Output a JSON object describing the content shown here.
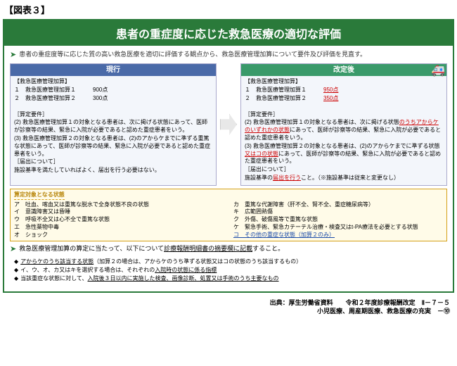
{
  "figure_label": "【図表３】",
  "title": "患者の重症度に応じた救急医療の適切な評価",
  "intro": "患者の重症度等に応じた質の高い救急医療を適切に評価する観点から、救急医療管理加算について要件及び評価を見直す。",
  "current": {
    "header": "現行",
    "section1_label": "【救急医療管理加算】",
    "item1": "１　救急医療管理加算１　　　900点",
    "item2": "２　救急医療管理加算２　　　300点",
    "req_label": "［算定要件］",
    "req2": "(2) 救急医療管理加算１の対象となる患者は、次に掲げる状態にあって、医師が診察等の結果、緊急に入院が必要であると認めた重症患者をいう。",
    "req3": "(3) 救急医療管理加算２の対象となる患者は、(2)のアからケまでに準ずる重篤な状態にあって、医師が診察等の結果、緊急に入院が必要であると認めた重症患者をいう。",
    "notify_label": "［届出について］",
    "notify": "施設基準を満たしていればよく、届出を行う必要はない。"
  },
  "revised": {
    "header": "改定後",
    "section1_label": "【救急医療管理加算】",
    "item1_pre": "１　救急医療管理加算１　　　",
    "item1_pts": "950点",
    "item2_pre": "２　救急医療管理加算２　　　",
    "item2_pts": "350点",
    "req_label": "［算定要件］",
    "req2_pre": "(2) 救急医療管理加算１の対象となる患者は、次に掲げる状態",
    "req2_red": "のうちアからケのいずれかの状態",
    "req2_post": "にあって、医師が診察等の結果、緊急に入院が必要であると認めた重症患者をいう。",
    "req3_pre": "(3) 救急医療管理加算２の対象となる患者は、(2)のアからケまでに準ずる状態",
    "req3_red": "又はコの状態",
    "req3_post": "にあって、医師が診察等の結果、緊急に入院が必要であると認めた重症患者をいう。",
    "notify_label": "［届出について］",
    "notify_pre": "施設基準の",
    "notify_red": "届出を行う",
    "notify_post": "こと。（※施設基準は従来と変更なし）"
  },
  "conditions": {
    "title": "算定対象となる状態",
    "left": [
      "ア　吐血、喀血又は重篤な脱水で全身状態不良の状態",
      "イ　意識障害又は昏睡",
      "ウ　呼吸不全又は心不全で重篤な状態",
      "エ　急性薬物中毒",
      "オ　ショック"
    ],
    "right": [
      "カ　重篤な代謝障害（肝不全、腎不全、重症糖尿病等）",
      "キ　広範囲熱傷",
      "ク　外傷、破傷風等で重篤な状態",
      "ケ　緊急手術、緊急カテーテル治療・検査又はt-PA療法を必要とする状態"
    ],
    "right_new": "コ　その他の重症な状態（加算２のみ）"
  },
  "note_line": {
    "pre": "救急医療管理加算の算定に当たって、以下について",
    "ul": "診療報酬明細書の摘要欄に記載",
    "post": "すること。"
  },
  "bullets": {
    "b1_ul": "アからケのうち該当する状態",
    "b1_post": "（加算２の場合は、アからケのうち準ずる状態又はコの状態のうち該当するもの）",
    "b2_pre": "イ、ウ、オ、カ又はキを選択する場合は、それぞれの",
    "b2_ul": "入院時の状態に係る指標",
    "b3_pre": "当該重症な状態に対して、",
    "b3_ul": "入院後３日以内に実施した検査、画像診断、処置又は手術のうち主要なもの"
  },
  "source": {
    "line1": "出典：厚生労働省資料　　令和２年度診療報酬改定　Ⅱ－７－５",
    "line2": "小児医療、周産期医療、救急医療の充実　－⑩"
  },
  "colors": {
    "border_green": "#2a7a3a",
    "header_current": "#4a6aa8",
    "header_revised": "#3a9a6a",
    "panel_bg": "#f3f6fb",
    "cond_border": "#d4a017",
    "cond_bg": "#fffbe8",
    "red_text": "#c00",
    "blue_text": "#1a4aa8"
  }
}
